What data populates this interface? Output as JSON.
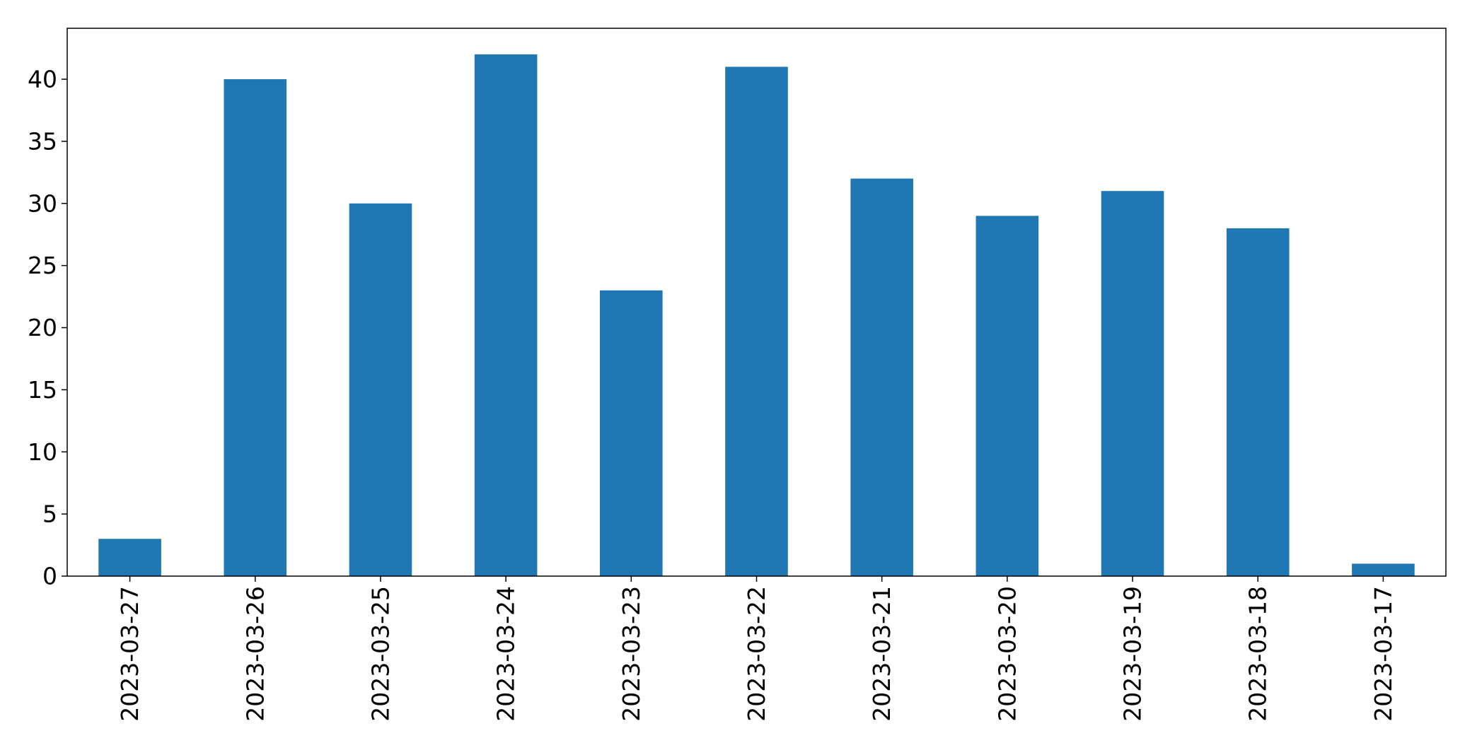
{
  "chart_data": {
    "type": "bar",
    "categories": [
      "2023-03-27",
      "2023-03-26",
      "2023-03-25",
      "2023-03-24",
      "2023-03-23",
      "2023-03-22",
      "2023-03-21",
      "2023-03-20",
      "2023-03-19",
      "2023-03-18",
      "2023-03-17"
    ],
    "values": [
      3,
      40,
      30,
      42,
      23,
      41,
      32,
      29,
      31,
      28,
      1
    ],
    "title": "",
    "xlabel": "",
    "ylabel": "",
    "ylim": [
      0,
      44.1
    ],
    "yticks": [
      0,
      5,
      10,
      15,
      20,
      25,
      30,
      35,
      40
    ],
    "grid": false,
    "legend": "none",
    "bar_color": "#1f77b4",
    "xtick_rotation": "vertical"
  }
}
